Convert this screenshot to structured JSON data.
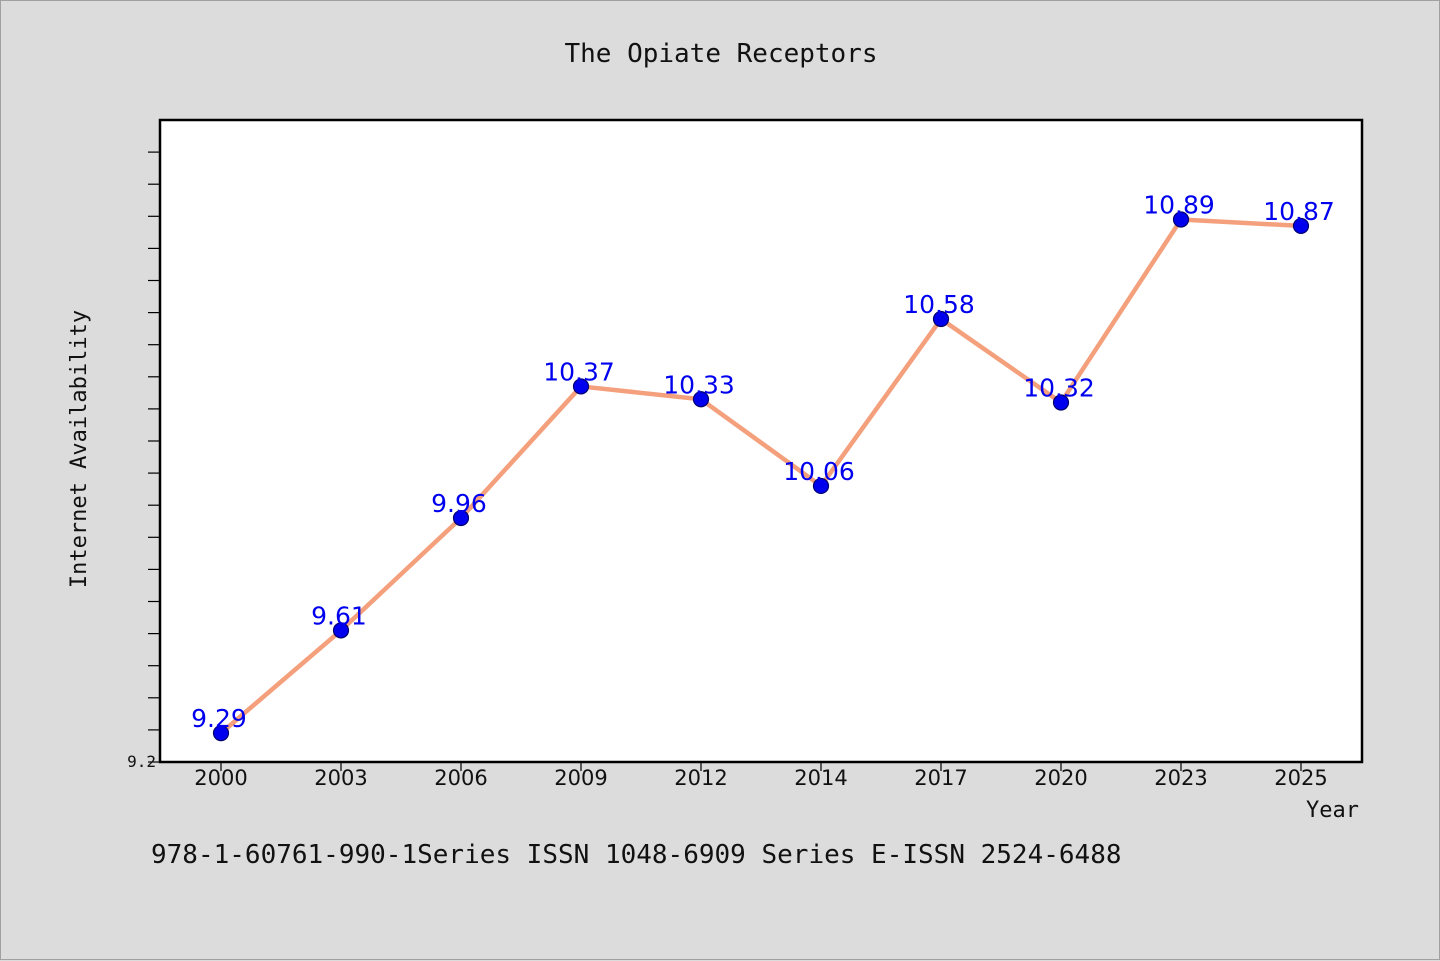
{
  "colors": {
    "background": "#dcdcdc",
    "plot_background": "#ffffff",
    "line": "#f4a07c",
    "marker": "#0000ee",
    "marker_edge": "#00006e",
    "data_label": "#0000ee"
  },
  "footer": "978-1-60761-990-1Series ISSN 1048-6909 Series E-ISSN 2524-6488",
  "chart_data": {
    "type": "line",
    "title": "The Opiate Receptors",
    "xlabel": "Year",
    "ylabel": "Internet Availability",
    "categories": [
      "2000",
      "2003",
      "2006",
      "2009",
      "2012",
      "2014",
      "2017",
      "2020",
      "2023",
      "2025"
    ],
    "series": [
      {
        "values": [
          9.29,
          9.61,
          9.96,
          10.37,
          10.33,
          10.06,
          10.58,
          10.32,
          10.89,
          10.87
        ]
      }
    ],
    "data_labels": [
      "9.29",
      "9.61",
      "9.96",
      "10.37",
      "10.33",
      "10.06",
      "10.58",
      "10.32",
      "10.89",
      "10.87"
    ],
    "ylim": [
      9.2,
      11.2
    ],
    "y_tick_labels": [
      "9.2"
    ],
    "y_minor_tick_step": 0.1,
    "grid": false,
    "legend": "none"
  }
}
